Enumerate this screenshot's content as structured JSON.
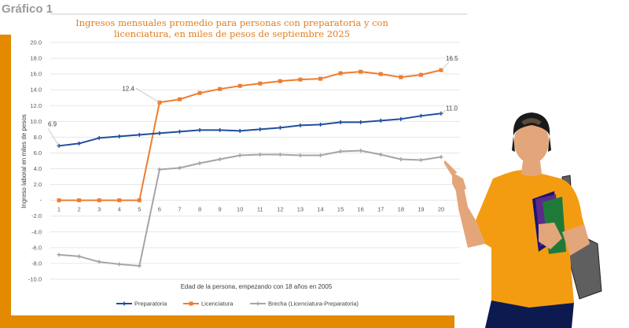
{
  "figure_label": "Gráfico 1",
  "colors": {
    "frame": "#e38a00",
    "preparatoria": "#1f4e9c",
    "licenciatura": "#ed7d31",
    "brecha": "#a5a5a5",
    "title": "#e07d1e"
  },
  "chart_data": {
    "type": "line",
    "title": "Ingresos mensuales promedio para personas con preparatoria y con licenciatura, en miles de pesos de septiembre 2025",
    "title_lines": [
      "Ingresos mensuales promedio para personas con preparatoria y con",
      "licenciatura, en miles de pesos de septiembre 2025"
    ],
    "xlabel": "Edad de la persona, empezando con 18 años en 2005",
    "ylabel": "Ingreso laboral en miles de pesos",
    "x": [
      1,
      2,
      3,
      4,
      5,
      6,
      7,
      8,
      9,
      10,
      11,
      12,
      13,
      14,
      15,
      16,
      17,
      18,
      19,
      20
    ],
    "x_tick_labels": [
      "1",
      "2",
      "3",
      "4",
      "5",
      "6",
      "7",
      "8",
      "9",
      "10",
      "11",
      "12",
      "13",
      "14",
      "15",
      "16",
      "17",
      "18",
      "19",
      "20"
    ],
    "ylim": [
      -10,
      20
    ],
    "y_ticks": [
      20,
      18,
      16,
      14,
      12,
      10,
      8,
      6,
      4,
      2,
      0,
      -2,
      -4,
      -6,
      -8,
      -10
    ],
    "y_tick_labels": [
      "20.0",
      "18.0",
      "16.0",
      "14.0",
      "12.0",
      "10.0",
      "8.0",
      "6.0",
      "4.0",
      "2.0",
      "-",
      "-2.0",
      "-4.0",
      "-6.0",
      "-8.0",
      "-10.0"
    ],
    "grid": true,
    "legend_position": "bottom",
    "series": [
      {
        "name": "Preparatoria",
        "color": "#1f4e9c",
        "marker": "cross",
        "values": [
          6.9,
          7.2,
          7.9,
          8.1,
          8.3,
          8.5,
          8.7,
          8.9,
          8.9,
          8.8,
          9.0,
          9.2,
          9.5,
          9.6,
          9.9,
          9.9,
          10.1,
          10.3,
          10.7,
          11.0
        ]
      },
      {
        "name": "Licenciatura",
        "color": "#ed7d31",
        "marker": "square",
        "values": [
          0,
          0,
          0,
          0,
          0,
          12.4,
          12.8,
          13.6,
          14.1,
          14.5,
          14.8,
          15.1,
          15.3,
          15.4,
          16.1,
          16.3,
          16.0,
          15.6,
          15.9,
          16.5
        ]
      },
      {
        "name": "Brecha (Licenciatura-Preparatoria)",
        "color": "#a5a5a5",
        "marker": "cross",
        "values": [
          -6.9,
          -7.1,
          -7.8,
          -8.1,
          -8.3,
          3.9,
          4.1,
          4.7,
          5.2,
          5.7,
          5.8,
          5.8,
          5.7,
          5.7,
          6.2,
          6.3,
          5.8,
          5.2,
          5.1,
          5.5
        ]
      }
    ],
    "annotations": [
      {
        "series": "Preparatoria",
        "x": 1,
        "text": "6.9"
      },
      {
        "series": "Licenciatura",
        "x": 6,
        "text": "12.4"
      },
      {
        "series": "Licenciatura",
        "x": 20,
        "text": "16.5"
      },
      {
        "series": "Preparatoria",
        "x": 20,
        "text": "11.0"
      }
    ]
  },
  "illustration": "student-pointing-illustration"
}
